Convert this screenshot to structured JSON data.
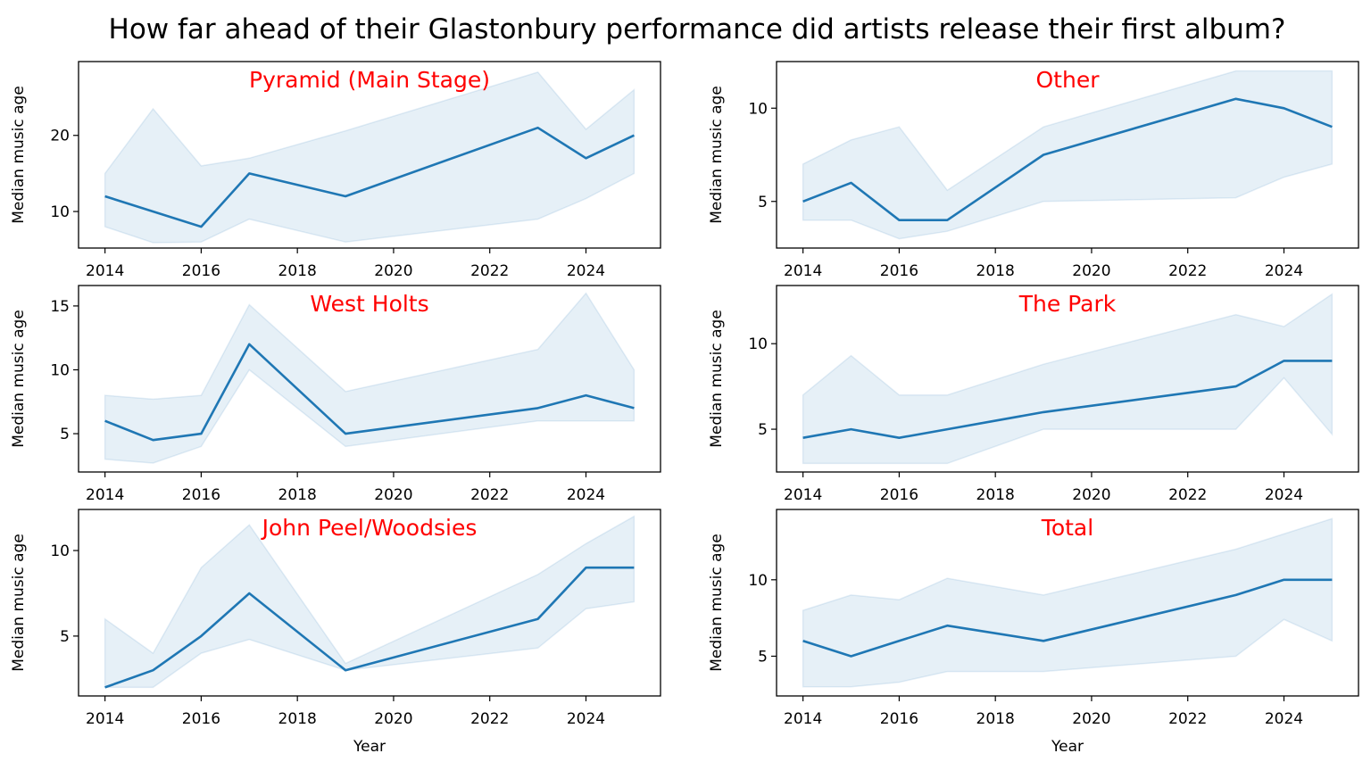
{
  "suptitle": "How far ahead of their Glastonbury performance did artists release their first album?",
  "colors": {
    "line": "#1f77b4",
    "band": "#1f77b4",
    "panel_title": "#ff0000",
    "axis": "#000000"
  },
  "chart_data": [
    {
      "type": "line",
      "title": "Pyramid (Main Stage)",
      "xlabel": "",
      "ylabel": "Median music age",
      "xlim": [
        2013.45,
        2025.55
      ],
      "ylim": [
        5.2,
        29.7
      ],
      "xticks": [
        2014,
        2016,
        2018,
        2020,
        2022,
        2024
      ],
      "yticks": [
        10,
        20
      ],
      "x": [
        2014,
        2016,
        2017,
        2019,
        2023,
        2024,
        2025
      ],
      "y": [
        12,
        8,
        15,
        12,
        21,
        17,
        20
      ],
      "ci_lower": [
        8,
        6,
        9,
        6,
        9,
        11.7,
        15
      ],
      "ci_upper": [
        15,
        16,
        17,
        20.6,
        28.3,
        20.8,
        26
      ],
      "ci_extra": [
        {
          "x": 2015,
          "lower": 5.9,
          "upper": 23.5
        }
      ]
    },
    {
      "type": "line",
      "title": "Other",
      "xlabel": "",
      "ylabel": "Median music age",
      "xlim": [
        2013.45,
        2025.55
      ],
      "ylim": [
        2.5,
        12.5
      ],
      "xticks": [
        2014,
        2016,
        2018,
        2020,
        2022,
        2024
      ],
      "yticks": [
        5,
        10
      ],
      "x": [
        2014,
        2015,
        2016,
        2017,
        2019,
        2023,
        2024,
        2025
      ],
      "y": [
        5,
        6,
        4,
        4,
        7.5,
        10.5,
        10,
        9
      ],
      "ci_lower": [
        4,
        4,
        3,
        3.4,
        5,
        5.2,
        6.3,
        7
      ],
      "ci_upper": [
        7,
        8.3,
        9,
        5.6,
        9,
        12,
        12,
        12
      ]
    },
    {
      "type": "line",
      "title": "West Holts",
      "xlabel": "",
      "ylabel": "Median music age",
      "xlim": [
        2013.45,
        2025.55
      ],
      "ylim": [
        2.0,
        16.6
      ],
      "xticks": [
        2014,
        2016,
        2018,
        2020,
        2022,
        2024
      ],
      "yticks": [
        5,
        10,
        15
      ],
      "x": [
        2014,
        2015,
        2016,
        2017,
        2019,
        2023,
        2024,
        2025
      ],
      "y": [
        6,
        4.5,
        5,
        12,
        5,
        7,
        8,
        7
      ],
      "ci_lower": [
        3,
        2.7,
        4,
        10,
        4,
        6,
        6,
        6
      ],
      "ci_upper": [
        8,
        7.7,
        8,
        15.1,
        8.3,
        11.6,
        16,
        10
      ]
    },
    {
      "type": "line",
      "title": "The Park",
      "xlabel": "",
      "ylabel": "Median music age",
      "xlim": [
        2013.45,
        2025.55
      ],
      "ylim": [
        2.5,
        13.4
      ],
      "xticks": [
        2014,
        2016,
        2018,
        2020,
        2022,
        2024
      ],
      "yticks": [
        5,
        10
      ],
      "x": [
        2014,
        2015,
        2016,
        2017,
        2019,
        2023,
        2024,
        2025
      ],
      "y": [
        4.5,
        5,
        4.5,
        5,
        6,
        7.5,
        9,
        9
      ],
      "ci_lower": [
        3,
        3,
        3,
        3,
        5,
        5,
        8,
        4.7
      ],
      "ci_upper": [
        7,
        9.3,
        7,
        7,
        8.8,
        11.7,
        11,
        12.9
      ]
    },
    {
      "type": "line",
      "title": "John Peel/Woodsies",
      "xlabel": "Year",
      "ylabel": "Median music age",
      "xlim": [
        2013.45,
        2025.55
      ],
      "ylim": [
        1.5,
        12.4
      ],
      "xticks": [
        2014,
        2016,
        2018,
        2020,
        2022,
        2024
      ],
      "yticks": [
        5,
        10
      ],
      "x": [
        2014,
        2015,
        2016,
        2017,
        2019,
        2023,
        2024,
        2025
      ],
      "y": [
        2,
        3,
        5,
        7.5,
        3,
        6,
        9,
        9
      ],
      "ci_lower": [
        2,
        2,
        4,
        4.8,
        3,
        4.3,
        6.6,
        7
      ],
      "ci_upper": [
        6,
        4,
        9,
        11.5,
        3.4,
        8.6,
        10.4,
        12
      ]
    },
    {
      "type": "line",
      "title": "Total",
      "xlabel": "Year",
      "ylabel": "Median music age",
      "xlim": [
        2013.45,
        2025.55
      ],
      "ylim": [
        2.4,
        14.6
      ],
      "xticks": [
        2014,
        2016,
        2018,
        2020,
        2022,
        2024
      ],
      "yticks": [
        5,
        10
      ],
      "x": [
        2014,
        2015,
        2016,
        2017,
        2019,
        2023,
        2024,
        2025
      ],
      "y": [
        6,
        5,
        6,
        7,
        6,
        9,
        10,
        10
      ],
      "ci_lower": [
        3,
        3,
        3.3,
        4,
        4,
        5,
        7.4,
        6
      ],
      "ci_upper": [
        8,
        9,
        8.7,
        10.1,
        9,
        12,
        13,
        14
      ]
    }
  ]
}
